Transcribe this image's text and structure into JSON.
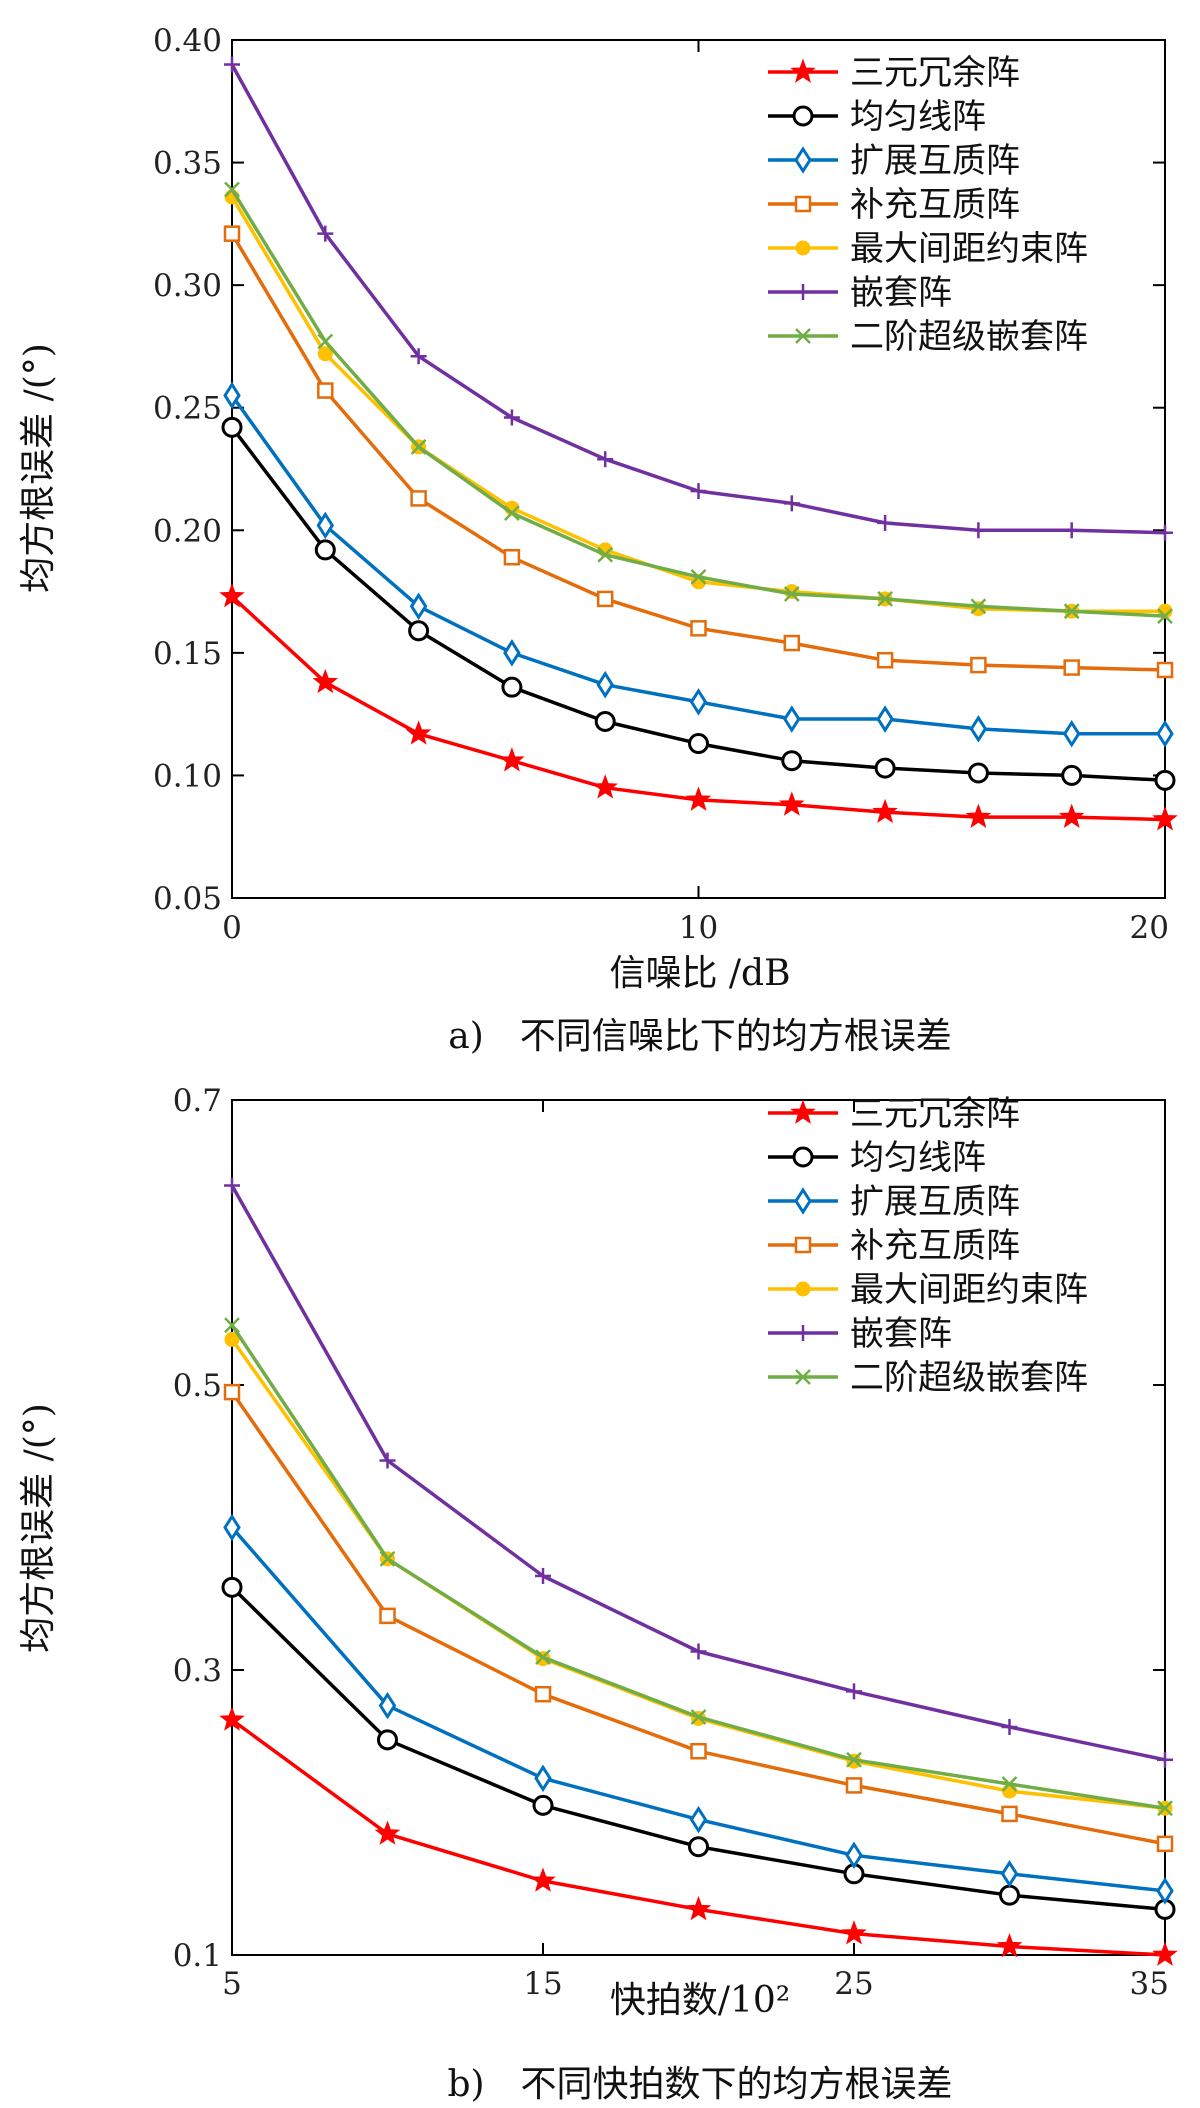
{
  "chart_data": [
    {
      "type": "line",
      "xlabel": "信噪比 /dB",
      "ylabel": "均方根误差 /(°)",
      "caption": "a)　不同信噪比下的均方根误差",
      "xlim": [
        0,
        20
      ],
      "ylim": [
        0.05,
        0.4
      ],
      "xticks": [
        "0",
        "10",
        "20"
      ],
      "yticks": [
        "0.05",
        "0.10",
        "0.15",
        "0.20",
        "0.25",
        "0.30",
        "0.35",
        "0.40"
      ],
      "x": [
        0,
        2,
        4,
        6,
        8,
        10,
        12,
        14,
        16,
        18,
        20
      ],
      "legend_position": "top-right",
      "grid": false,
      "series": [
        {
          "name": "三元冗余阵",
          "color": "#ff0000",
          "marker": "star",
          "values": [
            0.173,
            0.138,
            0.117,
            0.106,
            0.095,
            0.09,
            0.088,
            0.085,
            0.083,
            0.083,
            0.082
          ]
        },
        {
          "name": "均匀线阵",
          "color": "#000000",
          "marker": "circle",
          "values": [
            0.242,
            0.192,
            0.159,
            0.136,
            0.122,
            0.113,
            0.106,
            0.103,
            0.101,
            0.1,
            0.098
          ]
        },
        {
          "name": "扩展互质阵",
          "color": "#0070c0",
          "marker": "diamond",
          "values": [
            0.255,
            0.202,
            0.169,
            0.15,
            0.137,
            0.13,
            0.123,
            0.123,
            0.119,
            0.117,
            0.117
          ]
        },
        {
          "name": "补充互质阵",
          "color": "#e46c0a",
          "marker": "square",
          "values": [
            0.321,
            0.257,
            0.213,
            0.189,
            0.172,
            0.16,
            0.154,
            0.147,
            0.145,
            0.144,
            0.143
          ]
        },
        {
          "name": "最大间距约束阵",
          "color": "#ffc000",
          "marker": "dot",
          "values": [
            0.336,
            0.272,
            0.234,
            0.209,
            0.192,
            0.179,
            0.175,
            0.172,
            0.168,
            0.167,
            0.167
          ]
        },
        {
          "name": "嵌套阵",
          "color": "#7030a0",
          "marker": "plus",
          "values": [
            0.39,
            0.321,
            0.271,
            0.246,
            0.229,
            0.216,
            0.211,
            0.203,
            0.2,
            0.2,
            0.199
          ]
        },
        {
          "name": "二阶超级嵌套阵",
          "color": "#70ad47",
          "marker": "x",
          "values": [
            0.339,
            0.277,
            0.234,
            0.207,
            0.19,
            0.181,
            0.174,
            0.172,
            0.169,
            0.167,
            0.165
          ]
        }
      ]
    },
    {
      "type": "line",
      "xlabel": "快拍数/10²",
      "ylabel": "均方根误差 /(°)",
      "caption": "b)　不同快拍数下的均方根误差",
      "xlim": [
        5,
        35
      ],
      "ylim": [
        0.1,
        0.7
      ],
      "xticks": [
        "5",
        "15",
        "25",
        "35"
      ],
      "yticks": [
        "0.1",
        "0.3",
        "0.5",
        "0.7"
      ],
      "x": [
        5,
        10,
        15,
        20,
        25,
        30,
        35
      ],
      "legend_position": "top-right",
      "grid": false,
      "series": [
        {
          "name": "三元冗余阵",
          "color": "#ff0000",
          "marker": "star",
          "values": [
            0.265,
            0.185,
            0.152,
            0.132,
            0.115,
            0.106,
            0.1
          ]
        },
        {
          "name": "均匀线阵",
          "color": "#000000",
          "marker": "circle",
          "values": [
            0.358,
            0.251,
            0.205,
            0.176,
            0.157,
            0.142,
            0.132
          ]
        },
        {
          "name": "扩展互质阵",
          "color": "#0070c0",
          "marker": "diamond",
          "values": [
            0.4,
            0.275,
            0.224,
            0.195,
            0.17,
            0.157,
            0.145
          ]
        },
        {
          "name": "补充互质阵",
          "color": "#e46c0a",
          "marker": "square",
          "values": [
            0.495,
            0.338,
            0.283,
            0.243,
            0.219,
            0.199,
            0.178
          ]
        },
        {
          "name": "最大间距约束阵",
          "color": "#ffc000",
          "marker": "dot",
          "values": [
            0.532,
            0.378,
            0.308,
            0.266,
            0.236,
            0.215,
            0.203
          ]
        },
        {
          "name": "嵌套阵",
          "color": "#7030a0",
          "marker": "plus",
          "values": [
            0.64,
            0.447,
            0.366,
            0.313,
            0.285,
            0.26,
            0.237
          ]
        },
        {
          "name": "二阶超级嵌套阵",
          "color": "#70ad47",
          "marker": "x",
          "values": [
            0.542,
            0.378,
            0.309,
            0.267,
            0.237,
            0.22,
            0.203
          ]
        }
      ]
    }
  ]
}
